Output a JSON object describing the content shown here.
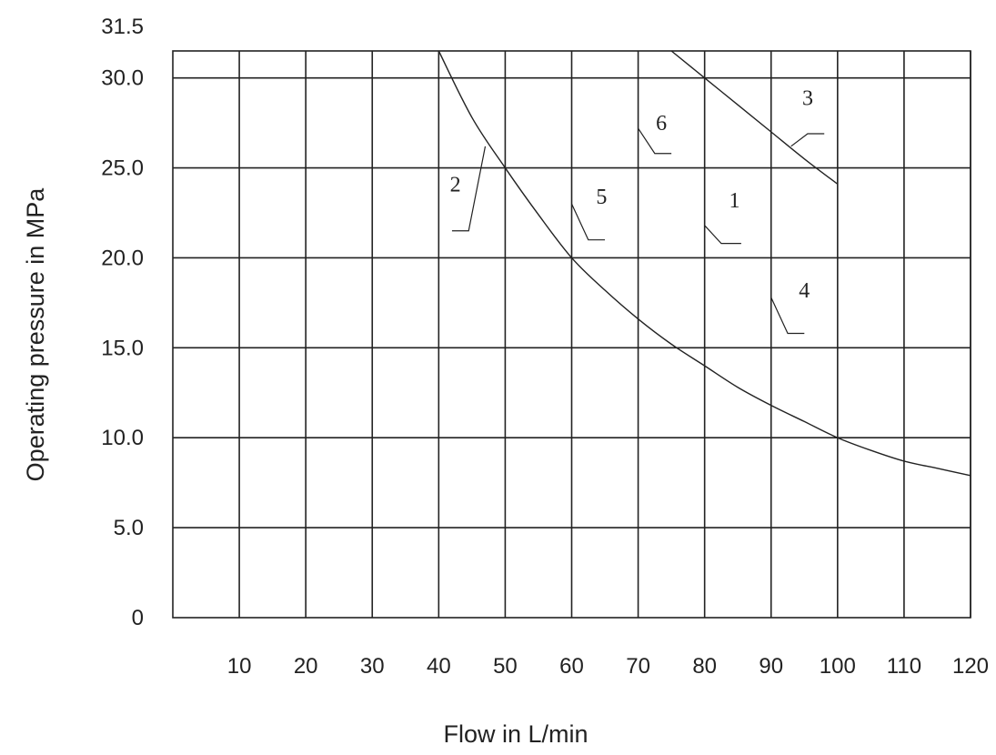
{
  "chart_data": {
    "type": "line",
    "xlabel": "Flow in L/min",
    "ylabel": "Operating pressure in MPa",
    "xlim": [
      0,
      120
    ],
    "ylim": [
      0,
      31.5
    ],
    "x_ticks": [
      "10",
      "20",
      "30",
      "40",
      "50",
      "60",
      "70",
      "80",
      "90",
      "100",
      "110",
      "120"
    ],
    "x_tick_values": [
      10,
      20,
      30,
      40,
      50,
      60,
      70,
      80,
      90,
      100,
      110,
      120
    ],
    "y_ticks": [
      "0",
      "5.0",
      "10.0",
      "15.0",
      "20.0",
      "25.0",
      "30.0",
      "31.5"
    ],
    "y_tick_values": [
      0,
      5,
      10,
      15,
      20,
      25,
      30,
      31.5
    ],
    "grid": true,
    "series": [
      {
        "x": [
          40,
          45,
          50,
          55,
          60,
          65,
          70,
          75,
          80,
          85,
          90,
          95,
          100,
          105,
          110,
          115,
          120
        ],
        "y": [
          31.5,
          27.8,
          25.0,
          22.4,
          20.0,
          18.2,
          16.6,
          15.2,
          14.0,
          12.8,
          11.8,
          10.9,
          10.0,
          9.3,
          8.7,
          8.3,
          7.9
        ]
      },
      {
        "x": [
          75,
          80,
          85,
          90,
          95,
          100
        ],
        "y": [
          31.5,
          30.0,
          28.5,
          27.0,
          25.5,
          24.1
        ]
      }
    ],
    "annotations": [
      {
        "text": "1",
        "x": 84.5,
        "y": 22.8
      },
      {
        "text": "2",
        "x": 42.5,
        "y": 23.7
      },
      {
        "text": "3",
        "x": 95.5,
        "y": 28.5
      },
      {
        "text": "4",
        "x": 95.0,
        "y": 17.8
      },
      {
        "text": "5",
        "x": 64.5,
        "y": 23.0
      },
      {
        "text": "6",
        "x": 73.5,
        "y": 27.1
      }
    ]
  }
}
